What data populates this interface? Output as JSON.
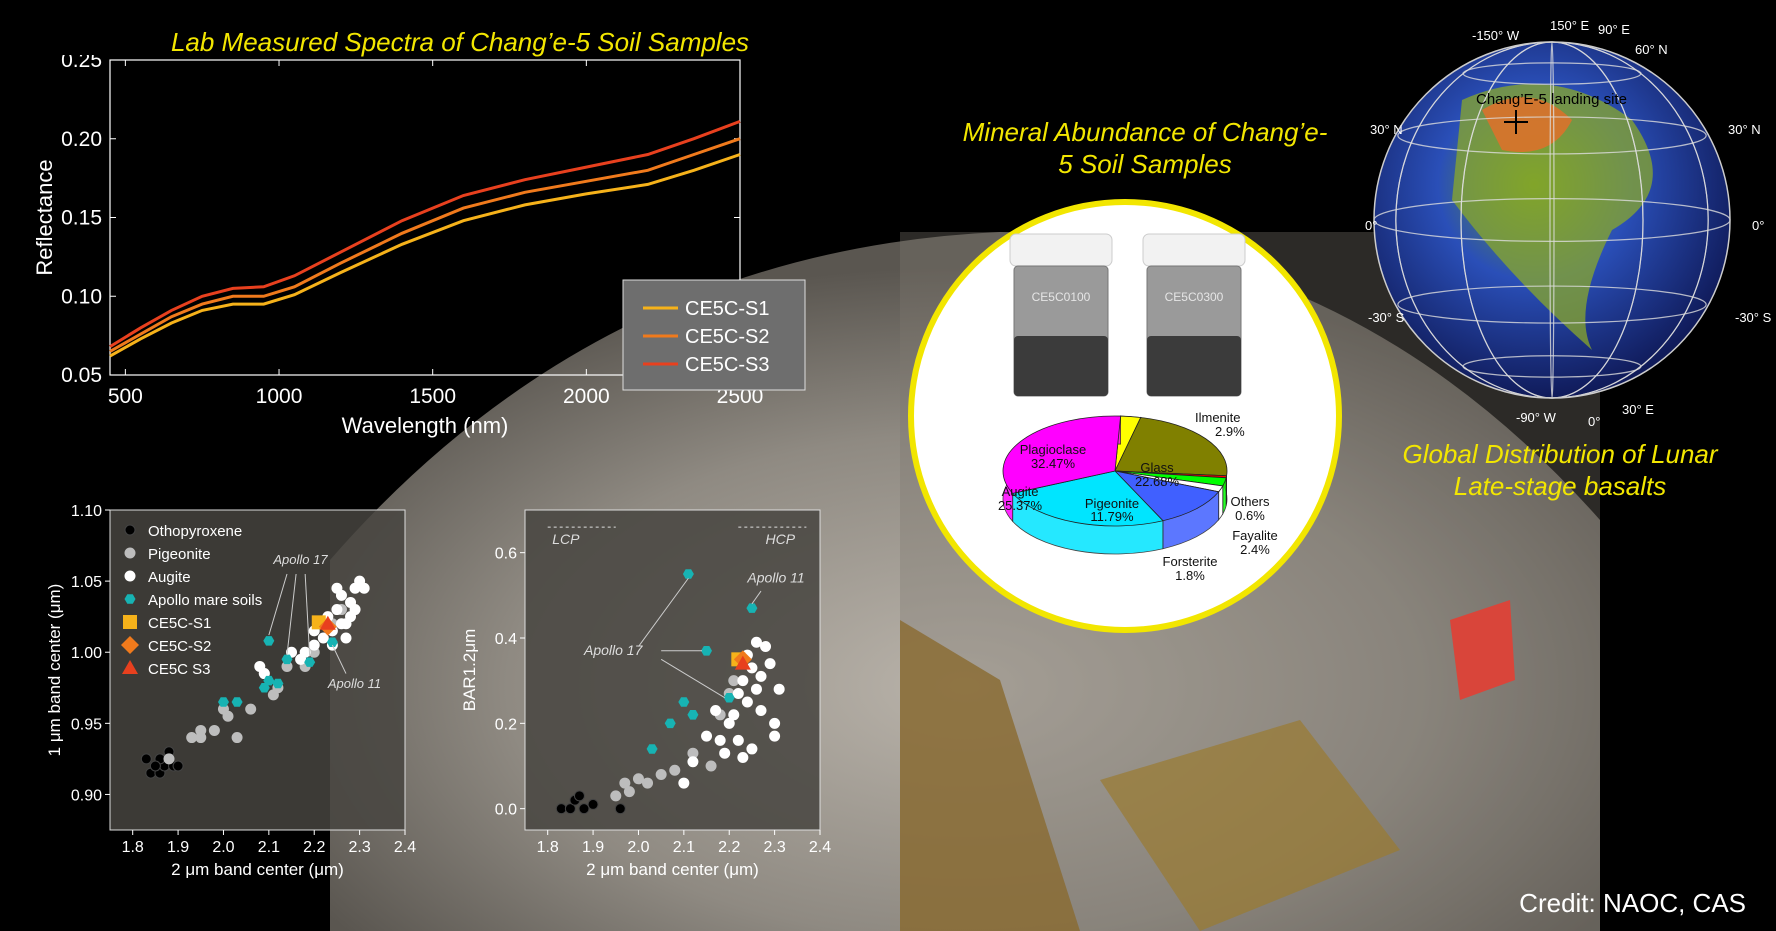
{
  "titles": {
    "spectra": "Lab Measured Spectra of Chang’e-5 Soil Samples",
    "mineral": "Mineral Abundance of Chang’e-5 Soil Samples",
    "global": "Global Distribution of Lunar Late-stage basalts"
  },
  "credit": "Credit: NAOC, CAS",
  "vials": [
    "CE5C0100",
    "CE5C0300"
  ],
  "globe": {
    "site_label": "Chang’E-5 landing site",
    "grid_labels": [
      "150° E",
      "-150° W",
      "90° E",
      "60° N",
      "30° N",
      "30° N",
      "0°",
      "0°",
      "-30° S",
      "-30° S",
      "-90° W",
      "0°",
      "30° E"
    ]
  },
  "colors": {
    "s1": "#f6b21a",
    "s2": "#f07a1c",
    "s3": "#e8401e",
    "plagioclase": "#ff00ff",
    "glass": "#808000",
    "ilmenite": "#ffff00",
    "augite": "#00e5ff",
    "pigeonite": "#4060ff",
    "others": "#ff0000",
    "fayalite": "#00ff00",
    "forsterite": "#ffffff",
    "apollo": "#17b3b3",
    "title_yellow": "#f2e600"
  },
  "chart_data": [
    {
      "type": "line",
      "title": "Lab Measured Spectra of Chang’e-5 Soil Samples",
      "xlabel": "Wavelength (nm)",
      "ylabel": "Reflectance",
      "xlim": [
        450,
        2500
      ],
      "ylim": [
        0.05,
        0.25
      ],
      "xticks": [
        500,
        1000,
        1500,
        2000,
        2500
      ],
      "yticks": [
        0.05,
        0.1,
        0.15,
        0.2,
        0.25
      ],
      "legend": "right",
      "x": [
        450,
        550,
        650,
        750,
        850,
        950,
        1050,
        1200,
        1400,
        1600,
        1800,
        2000,
        2200,
        2350,
        2500
      ],
      "series": [
        {
          "name": "CE5C-S1",
          "values": [
            0.062,
            0.073,
            0.083,
            0.091,
            0.095,
            0.095,
            0.101,
            0.115,
            0.133,
            0.148,
            0.158,
            0.165,
            0.171,
            0.18,
            0.19
          ]
        },
        {
          "name": "CE5C-S2",
          "values": [
            0.065,
            0.076,
            0.087,
            0.095,
            0.1,
            0.1,
            0.106,
            0.121,
            0.14,
            0.156,
            0.166,
            0.173,
            0.18,
            0.19,
            0.2
          ]
        },
        {
          "name": "CE5C-S3",
          "values": [
            0.068,
            0.08,
            0.091,
            0.1,
            0.105,
            0.106,
            0.113,
            0.128,
            0.148,
            0.164,
            0.174,
            0.182,
            0.19,
            0.2,
            0.211
          ]
        }
      ]
    },
    {
      "type": "scatter",
      "xlabel": "2 μm band center (μm)",
      "ylabel": "1 μm band center (μm)",
      "xlim": [
        1.75,
        2.4
      ],
      "ylim": [
        0.875,
        1.1
      ],
      "xticks": [
        1.8,
        1.9,
        2.0,
        2.1,
        2.2,
        2.3,
        2.4
      ],
      "yticks": [
        0.9,
        0.95,
        1.0,
        1.05,
        1.1
      ],
      "legend": "top-left",
      "annotations": [
        "Apollo 17",
        "Apollo 11"
      ],
      "series": [
        {
          "name": "Othopyroxene",
          "points": [
            [
              1.83,
              0.925
            ],
            [
              1.84,
              0.915
            ],
            [
              1.86,
              0.915
            ],
            [
              1.87,
              0.92
            ],
            [
              1.88,
              0.93
            ],
            [
              1.89,
              0.92
            ],
            [
              1.9,
              0.92
            ],
            [
              1.86,
              0.925
            ],
            [
              1.85,
              0.92
            ]
          ]
        },
        {
          "name": "Pigeonite",
          "points": [
            [
              1.88,
              0.925
            ],
            [
              1.93,
              0.94
            ],
            [
              1.95,
              0.94
            ],
            [
              1.98,
              0.945
            ],
            [
              2.0,
              0.96
            ],
            [
              2.03,
              0.94
            ],
            [
              2.06,
              0.96
            ],
            [
              2.11,
              0.97
            ],
            [
              2.12,
              0.975
            ],
            [
              2.18,
              0.99
            ],
            [
              2.2,
              1.0
            ],
            [
              2.24,
              1.02
            ],
            [
              2.26,
              1.03
            ],
            [
              1.95,
              0.945
            ],
            [
              2.01,
              0.955
            ],
            [
              2.09,
              0.985
            ],
            [
              2.14,
              0.99
            ]
          ]
        },
        {
          "name": "Augite",
          "points": [
            [
              2.08,
              0.99
            ],
            [
              2.09,
              0.985
            ],
            [
              2.15,
              1.0
            ],
            [
              2.17,
              0.995
            ],
            [
              2.2,
              1.005
            ],
            [
              2.22,
              1.01
            ],
            [
              2.24,
              1.015
            ],
            [
              2.25,
              1.03
            ],
            [
              2.26,
              1.04
            ],
            [
              2.27,
              1.02
            ],
            [
              2.28,
              1.035
            ],
            [
              2.29,
              1.045
            ],
            [
              2.3,
              1.05
            ],
            [
              2.31,
              1.045
            ],
            [
              2.27,
              1.01
            ],
            [
              2.26,
              1.02
            ],
            [
              2.23,
              1.025
            ],
            [
              2.2,
              1.015
            ],
            [
              2.18,
              1.0
            ],
            [
              2.25,
              1.045
            ],
            [
              2.28,
              1.025
            ],
            [
              2.29,
              1.03
            ],
            [
              2.24,
              1.005
            ],
            [
              2.21,
              1.02
            ]
          ]
        },
        {
          "name": "Apollo mare soils",
          "points": [
            [
              2.1,
              1.008
            ],
            [
              2.14,
              0.995
            ],
            [
              2.09,
              0.975
            ],
            [
              2.12,
              0.978
            ],
            [
              2.19,
              0.993
            ],
            [
              2.24,
              1.007
            ],
            [
              2.1,
              0.98
            ],
            [
              2.0,
              0.965
            ],
            [
              2.03,
              0.965
            ]
          ]
        },
        {
          "name": "CE5C-S1",
          "points": [
            [
              2.21,
              1.021
            ]
          ]
        },
        {
          "name": "CE5C-S2",
          "points": [
            [
              2.23,
              1.018
            ]
          ]
        },
        {
          "name": "CE5C S3",
          "points": [
            [
              2.23,
              1.02
            ]
          ]
        }
      ]
    },
    {
      "type": "scatter",
      "xlabel": "2 μm band center (μm)",
      "ylabel": "BAR1.2μm",
      "xlim": [
        1.75,
        2.4
      ],
      "ylim": [
        -0.05,
        0.7
      ],
      "xticks": [
        1.8,
        1.9,
        2.0,
        2.1,
        2.2,
        2.3,
        2.4
      ],
      "yticks": [
        0.0,
        0.2,
        0.4,
        0.6
      ],
      "annotations": [
        "LCP",
        "HCP",
        "Apollo 17",
        "Apollo 11"
      ],
      "series": [
        {
          "name": "Othopyroxene",
          "points": [
            [
              1.83,
              0.0
            ],
            [
              1.85,
              0.0
            ],
            [
              1.86,
              0.02
            ],
            [
              1.87,
              0.03
            ],
            [
              1.88,
              0.0
            ],
            [
              1.9,
              0.01
            ],
            [
              1.96,
              0.0
            ]
          ]
        },
        {
          "name": "Pigeonite",
          "points": [
            [
              1.95,
              0.03
            ],
            [
              1.97,
              0.06
            ],
            [
              1.98,
              0.04
            ],
            [
              2.0,
              0.07
            ],
            [
              2.02,
              0.06
            ],
            [
              2.05,
              0.08
            ],
            [
              2.08,
              0.09
            ],
            [
              2.12,
              0.13
            ],
            [
              2.16,
              0.1
            ],
            [
              2.18,
              0.22
            ],
            [
              2.2,
              0.27
            ],
            [
              2.21,
              0.3
            ]
          ]
        },
        {
          "name": "Augite",
          "points": [
            [
              2.1,
              0.06
            ],
            [
              2.12,
              0.11
            ],
            [
              2.15,
              0.17
            ],
            [
              2.18,
              0.16
            ],
            [
              2.19,
              0.13
            ],
            [
              2.2,
              0.2
            ],
            [
              2.21,
              0.22
            ],
            [
              2.22,
              0.27
            ],
            [
              2.23,
              0.3
            ],
            [
              2.24,
              0.25
            ],
            [
              2.25,
              0.33
            ],
            [
              2.26,
              0.28
            ],
            [
              2.27,
              0.23
            ],
            [
              2.28,
              0.38
            ],
            [
              2.29,
              0.34
            ],
            [
              2.3,
              0.2
            ],
            [
              2.31,
              0.28
            ],
            [
              2.24,
              0.36
            ],
            [
              2.26,
              0.39
            ],
            [
              2.22,
              0.16
            ],
            [
              2.25,
              0.14
            ],
            [
              2.27,
              0.31
            ],
            [
              2.3,
              0.17
            ],
            [
              2.23,
              0.12
            ],
            [
              2.17,
              0.23
            ]
          ]
        },
        {
          "name": "Apollo mare soils",
          "points": [
            [
              2.11,
              0.55
            ],
            [
              2.15,
              0.37
            ],
            [
              2.25,
              0.47
            ],
            [
              2.1,
              0.25
            ],
            [
              2.12,
              0.22
            ],
            [
              2.2,
              0.26
            ],
            [
              2.07,
              0.2
            ],
            [
              2.03,
              0.14
            ]
          ]
        },
        {
          "name": "CE5C-S1",
          "points": [
            [
              2.22,
              0.35
            ]
          ]
        },
        {
          "name": "CE5C-S2",
          "points": [
            [
              2.23,
              0.35
            ]
          ]
        },
        {
          "name": "CE5C S3",
          "points": [
            [
              2.23,
              0.34
            ]
          ]
        }
      ]
    },
    {
      "type": "pie",
      "title": "Mineral Abundance of Chang’e-5 Soil Samples",
      "labels": [
        "Plagioclase",
        "Glass",
        "Augite",
        "Pigeonite",
        "Ilmenite",
        "Others",
        "Fayalite",
        "Forsterite"
      ],
      "value_labels": [
        "32.47%",
        "22.68%",
        "25.37%",
        "11.79%",
        "2.9%",
        "0.6%",
        "2.4%",
        "1.8%"
      ],
      "values": [
        32.47,
        22.68,
        25.37,
        11.79,
        2.9,
        0.6,
        2.4,
        1.8
      ]
    }
  ]
}
